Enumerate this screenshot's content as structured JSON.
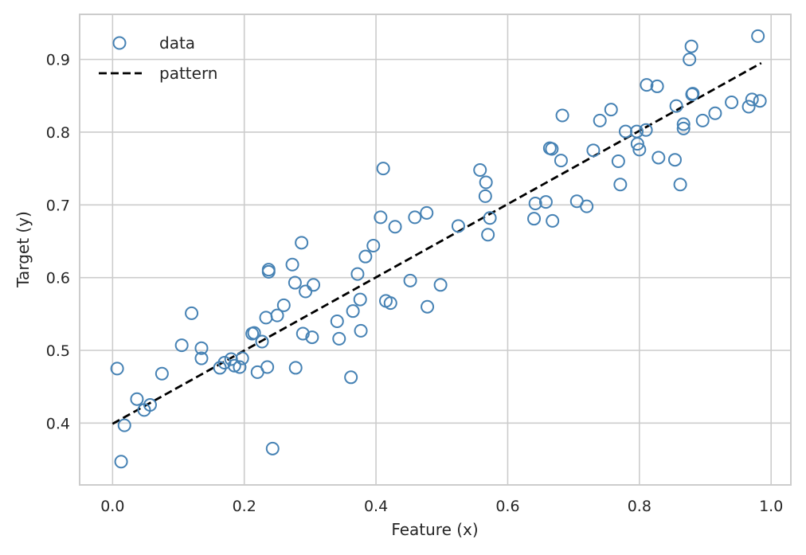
{
  "chart_data": {
    "type": "scatter",
    "title": "",
    "xlabel": "Feature (x)",
    "ylabel": "Target (y)",
    "xlim": [
      -0.05,
      1.03
    ],
    "ylim": [
      0.315,
      0.962
    ],
    "xticks": [
      0.0,
      0.2,
      0.4,
      0.6,
      0.8,
      1.0
    ],
    "xtick_labels": [
      "0.0",
      "0.2",
      "0.4",
      "0.6",
      "0.8",
      "1.0"
    ],
    "yticks": [
      0.4,
      0.5,
      0.6,
      0.7,
      0.8,
      0.9
    ],
    "ytick_labels": [
      "0.4",
      "0.5",
      "0.6",
      "0.7",
      "0.8",
      "0.9"
    ],
    "grid": true,
    "legend_position": "top-left",
    "colors": {
      "points": "#4682b4",
      "line": "#000000",
      "grid": "#cccccc",
      "spine": "#cccccc"
    },
    "series": [
      {
        "name": "data",
        "kind": "scatter",
        "marker": "hollow-circle",
        "x": [
          0.007,
          0.013,
          0.018,
          0.037,
          0.048,
          0.057,
          0.075,
          0.105,
          0.12,
          0.135,
          0.135,
          0.163,
          0.17,
          0.18,
          0.185,
          0.193,
          0.197,
          0.212,
          0.215,
          0.22,
          0.227,
          0.233,
          0.235,
          0.237,
          0.237,
          0.243,
          0.25,
          0.26,
          0.273,
          0.277,
          0.278,
          0.287,
          0.289,
          0.293,
          0.303,
          0.305,
          0.341,
          0.344,
          0.362,
          0.365,
          0.372,
          0.376,
          0.377,
          0.384,
          0.396,
          0.407,
          0.411,
          0.415,
          0.422,
          0.429,
          0.452,
          0.459,
          0.477,
          0.478,
          0.498,
          0.525,
          0.558,
          0.566,
          0.567,
          0.57,
          0.573,
          0.64,
          0.642,
          0.658,
          0.664,
          0.667,
          0.668,
          0.681,
          0.683,
          0.705,
          0.72,
          0.73,
          0.74,
          0.757,
          0.768,
          0.771,
          0.779,
          0.796,
          0.797,
          0.8,
          0.81,
          0.811,
          0.827,
          0.829,
          0.854,
          0.856,
          0.862,
          0.867,
          0.867,
          0.876,
          0.879,
          0.88,
          0.881,
          0.896,
          0.915,
          0.94,
          0.966,
          0.971,
          0.98,
          0.983
        ],
        "y": [
          0.475,
          0.347,
          0.397,
          0.433,
          0.418,
          0.425,
          0.468,
          0.507,
          0.551,
          0.503,
          0.489,
          0.476,
          0.483,
          0.488,
          0.479,
          0.477,
          0.489,
          0.523,
          0.524,
          0.47,
          0.512,
          0.545,
          0.477,
          0.611,
          0.608,
          0.365,
          0.548,
          0.562,
          0.618,
          0.593,
          0.476,
          0.648,
          0.523,
          0.581,
          0.518,
          0.59,
          0.54,
          0.516,
          0.463,
          0.554,
          0.605,
          0.57,
          0.527,
          0.629,
          0.644,
          0.683,
          0.75,
          0.568,
          0.565,
          0.67,
          0.596,
          0.683,
          0.689,
          0.56,
          0.59,
          0.671,
          0.748,
          0.712,
          0.731,
          0.659,
          0.682,
          0.681,
          0.702,
          0.704,
          0.778,
          0.777,
          0.678,
          0.761,
          0.823,
          0.705,
          0.698,
          0.775,
          0.816,
          0.831,
          0.76,
          0.728,
          0.801,
          0.801,
          0.784,
          0.776,
          0.803,
          0.865,
          0.863,
          0.765,
          0.762,
          0.836,
          0.728,
          0.805,
          0.811,
          0.9,
          0.918,
          0.852,
          0.853,
          0.816,
          0.826,
          0.841,
          0.835,
          0.845,
          0.932,
          0.843
        ]
      },
      {
        "name": "pattern",
        "kind": "line",
        "style": "dashed",
        "x": [
          0.0,
          0.985
        ],
        "y": [
          0.399,
          0.895
        ]
      }
    ]
  }
}
